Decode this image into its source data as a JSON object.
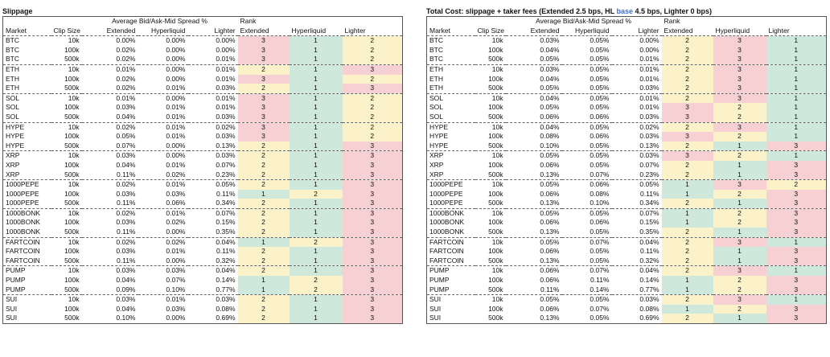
{
  "colors": {
    "rank1": "#cfe8dc",
    "rank2": "#fbf2c9",
    "rank3": "#f6d0d2",
    "accent": "#3b6fd8"
  },
  "headers": {
    "spread_group": "Average Bid/Ask-Mid Spread %",
    "rank_group": "Rank",
    "market": "Market",
    "clip_size": "Clip Size",
    "extended": "Extended",
    "hyperliquid": "Hyperliquid",
    "lighter": "Lighter"
  },
  "panels": [
    {
      "title": "Slippage",
      "rows": [
        [
          "BTC",
          "10k",
          "0.00%",
          "0.00%",
          "0.00%",
          "3",
          "1",
          "2"
        ],
        [
          "BTC",
          "100k",
          "0.02%",
          "0.00%",
          "0.00%",
          "3",
          "1",
          "2"
        ],
        [
          "BTC",
          "500k",
          "0.02%",
          "0.00%",
          "0.01%",
          "3",
          "1",
          "2"
        ],
        [
          "ETH",
          "10k",
          "0.01%",
          "0.00%",
          "0.01%",
          "2",
          "1",
          "3"
        ],
        [
          "ETH",
          "100k",
          "0.02%",
          "0.00%",
          "0.01%",
          "3",
          "1",
          "2"
        ],
        [
          "ETH",
          "500k",
          "0.02%",
          "0.01%",
          "0.03%",
          "2",
          "1",
          "3"
        ],
        [
          "SOL",
          "10k",
          "0.01%",
          "0.00%",
          "0.01%",
          "3",
          "1",
          "2"
        ],
        [
          "SOL",
          "100k",
          "0.03%",
          "0.01%",
          "0.01%",
          "3",
          "1",
          "2"
        ],
        [
          "SOL",
          "500k",
          "0.04%",
          "0.01%",
          "0.03%",
          "3",
          "1",
          "2"
        ],
        [
          "HYPE",
          "10k",
          "0.02%",
          "0.01%",
          "0.02%",
          "3",
          "1",
          "2"
        ],
        [
          "HYPE",
          "100k",
          "0.05%",
          "0.01%",
          "0.03%",
          "3",
          "1",
          "2"
        ],
        [
          "HYPE",
          "500k",
          "0.07%",
          "0.00%",
          "0.13%",
          "2",
          "1",
          "3"
        ],
        [
          "XRP",
          "10k",
          "0.03%",
          "0.00%",
          "0.03%",
          "2",
          "1",
          "3"
        ],
        [
          "XRP",
          "100k",
          "0.04%",
          "0.01%",
          "0.07%",
          "2",
          "1",
          "3"
        ],
        [
          "XRP",
          "500k",
          "0.11%",
          "0.02%",
          "0.23%",
          "2",
          "1",
          "3"
        ],
        [
          "1000PEPE",
          "10k",
          "0.02%",
          "0.01%",
          "0.05%",
          "2",
          "1",
          "3"
        ],
        [
          "1000PEPE",
          "100k",
          "0.03%",
          "0.03%",
          "0.11%",
          "1",
          "2",
          "3"
        ],
        [
          "1000PEPE",
          "500k",
          "0.11%",
          "0.06%",
          "0.34%",
          "2",
          "1",
          "3"
        ],
        [
          "1000BONK",
          "10k",
          "0.02%",
          "0.01%",
          "0.07%",
          "2",
          "1",
          "3"
        ],
        [
          "1000BONK",
          "100k",
          "0.03%",
          "0.02%",
          "0.15%",
          "2",
          "1",
          "3"
        ],
        [
          "1000BONK",
          "500k",
          "0.11%",
          "0.00%",
          "0.35%",
          "2",
          "1",
          "3"
        ],
        [
          "FARTCOIN",
          "10k",
          "0.02%",
          "0.02%",
          "0.04%",
          "1",
          "2",
          "3"
        ],
        [
          "FARTCOIN",
          "100k",
          "0.03%",
          "0.01%",
          "0.11%",
          "2",
          "1",
          "3"
        ],
        [
          "FARTCOIN",
          "500k",
          "0.11%",
          "0.00%",
          "0.32%",
          "2",
          "1",
          "3"
        ],
        [
          "PUMP",
          "10k",
          "0.03%",
          "0.03%",
          "0.04%",
          "2",
          "1",
          "3"
        ],
        [
          "PUMP",
          "100k",
          "0.04%",
          "0.07%",
          "0.14%",
          "1",
          "2",
          "3"
        ],
        [
          "PUMP",
          "500k",
          "0.09%",
          "0.10%",
          "0.77%",
          "1",
          "2",
          "3"
        ],
        [
          "SUI",
          "10k",
          "0.03%",
          "0.01%",
          "0.03%",
          "2",
          "1",
          "3"
        ],
        [
          "SUI",
          "100k",
          "0.04%",
          "0.03%",
          "0.08%",
          "2",
          "1",
          "3"
        ],
        [
          "SUI",
          "500k",
          "0.10%",
          "0.00%",
          "0.69%",
          "2",
          "1",
          "3"
        ]
      ]
    },
    {
      "title_pre": "Total Cost: slippage + taker fees (Extended 2.5 bps, HL ",
      "title_hl": "base",
      "title_post": " 4.5 bps, Lighter 0 bps)",
      "rows": [
        [
          "BTC",
          "10k",
          "0.03%",
          "0.05%",
          "0.00%",
          "2",
          "3",
          "1"
        ],
        [
          "BTC",
          "100k",
          "0.04%",
          "0.05%",
          "0.00%",
          "2",
          "3",
          "1"
        ],
        [
          "BTC",
          "500k",
          "0.05%",
          "0.05%",
          "0.01%",
          "2",
          "3",
          "1"
        ],
        [
          "ETH",
          "10k",
          "0.03%",
          "0.05%",
          "0.01%",
          "2",
          "3",
          "1"
        ],
        [
          "ETH",
          "100k",
          "0.04%",
          "0.05%",
          "0.01%",
          "2",
          "3",
          "1"
        ],
        [
          "ETH",
          "500k",
          "0.05%",
          "0.05%",
          "0.03%",
          "2",
          "3",
          "1"
        ],
        [
          "SOL",
          "10k",
          "0.04%",
          "0.05%",
          "0.01%",
          "2",
          "3",
          "1"
        ],
        [
          "SOL",
          "100k",
          "0.05%",
          "0.05%",
          "0.01%",
          "3",
          "2",
          "1"
        ],
        [
          "SOL",
          "500k",
          "0.06%",
          "0.06%",
          "0.03%",
          "3",
          "2",
          "1"
        ],
        [
          "HYPE",
          "10k",
          "0.04%",
          "0.05%",
          "0.02%",
          "2",
          "3",
          "1"
        ],
        [
          "HYPE",
          "100k",
          "0.08%",
          "0.06%",
          "0.03%",
          "3",
          "2",
          "1"
        ],
        [
          "HYPE",
          "500k",
          "0.10%",
          "0.05%",
          "0.13%",
          "2",
          "1",
          "3"
        ],
        [
          "XRP",
          "10k",
          "0.05%",
          "0.05%",
          "0.03%",
          "3",
          "2",
          "1"
        ],
        [
          "XRP",
          "100k",
          "0.06%",
          "0.05%",
          "0.07%",
          "2",
          "1",
          "3"
        ],
        [
          "XRP",
          "500k",
          "0.13%",
          "0.07%",
          "0.23%",
          "2",
          "1",
          "3"
        ],
        [
          "1000PEPE",
          "10k",
          "0.05%",
          "0.06%",
          "0.05%",
          "1",
          "3",
          "2"
        ],
        [
          "1000PEPE",
          "100k",
          "0.06%",
          "0.08%",
          "0.11%",
          "1",
          "2",
          "3"
        ],
        [
          "1000PEPE",
          "500k",
          "0.13%",
          "0.10%",
          "0.34%",
          "2",
          "1",
          "3"
        ],
        [
          "1000BONK",
          "10k",
          "0.05%",
          "0.05%",
          "0.07%",
          "1",
          "2",
          "3"
        ],
        [
          "1000BONK",
          "100k",
          "0.06%",
          "0.06%",
          "0.15%",
          "1",
          "2",
          "3"
        ],
        [
          "1000BONK",
          "500k",
          "0.13%",
          "0.05%",
          "0.35%",
          "2",
          "1",
          "3"
        ],
        [
          "FARTCOIN",
          "10k",
          "0.05%",
          "0.07%",
          "0.04%",
          "2",
          "3",
          "1"
        ],
        [
          "FARTCOIN",
          "100k",
          "0.06%",
          "0.05%",
          "0.11%",
          "2",
          "1",
          "3"
        ],
        [
          "FARTCOIN",
          "500k",
          "0.13%",
          "0.05%",
          "0.32%",
          "2",
          "1",
          "3"
        ],
        [
          "PUMP",
          "10k",
          "0.06%",
          "0.07%",
          "0.04%",
          "2",
          "3",
          "1"
        ],
        [
          "PUMP",
          "100k",
          "0.06%",
          "0.11%",
          "0.14%",
          "1",
          "2",
          "3"
        ],
        [
          "PUMP",
          "500k",
          "0.11%",
          "0.14%",
          "0.77%",
          "1",
          "2",
          "3"
        ],
        [
          "SUI",
          "10k",
          "0.05%",
          "0.05%",
          "0.03%",
          "2",
          "3",
          "1"
        ],
        [
          "SUI",
          "100k",
          "0.06%",
          "0.07%",
          "0.08%",
          "1",
          "2",
          "3"
        ],
        [
          "SUI",
          "500k",
          "0.13%",
          "0.05%",
          "0.69%",
          "2",
          "1",
          "3"
        ]
      ]
    }
  ]
}
